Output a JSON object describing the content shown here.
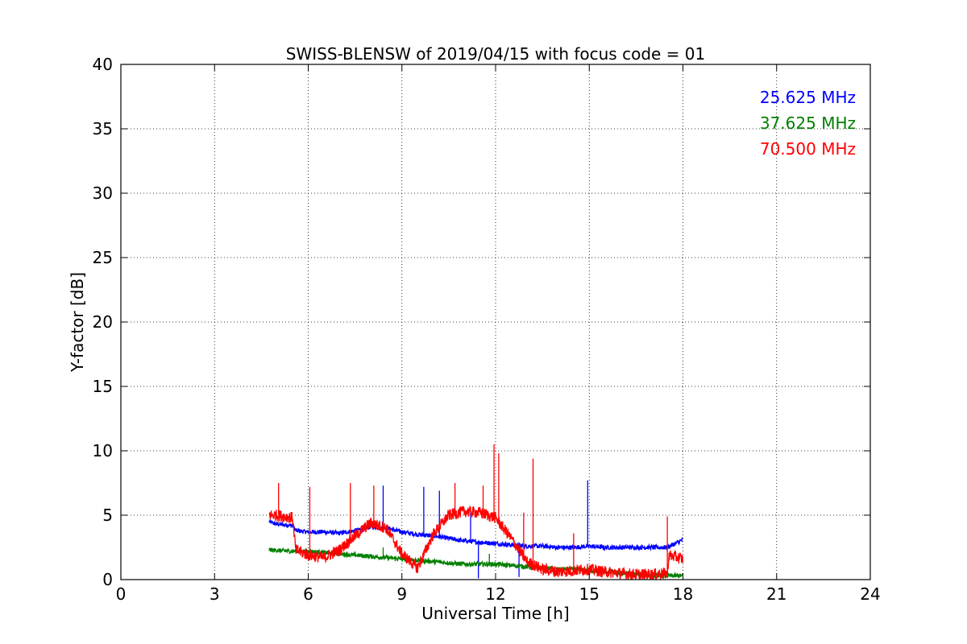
{
  "chart_data": {
    "type": "line",
    "title": "SWISS-BLENSW of 2019/04/15 with focus code = 01",
    "xlabel": "Universal Time [h]",
    "ylabel": "Y-factor [dB]",
    "xlim": [
      0,
      24
    ],
    "ylim": [
      0,
      40
    ],
    "xticks": [
      0,
      3,
      6,
      9,
      12,
      15,
      18,
      21,
      24
    ],
    "yticks": [
      0,
      5,
      10,
      15,
      20,
      25,
      30,
      35,
      40
    ],
    "xtick_labels": [
      "0",
      "3",
      "6",
      "9",
      "12",
      "15",
      "18",
      "21",
      "24"
    ],
    "ytick_labels": [
      "0",
      "5",
      "10",
      "15",
      "20",
      "25",
      "30",
      "35",
      "40"
    ],
    "grid": true,
    "legend_position": "top-right",
    "series": [
      {
        "name": "25.625 MHz",
        "color": "#0000ff",
        "x": [
          4.75,
          5.0,
          5.5,
          5.6,
          6.0,
          6.5,
          7.0,
          7.5,
          8.0,
          8.5,
          9.0,
          9.5,
          10.0,
          10.5,
          11.0,
          11.5,
          12.0,
          12.5,
          13.0,
          13.5,
          14.0,
          14.5,
          15.0,
          15.5,
          16.0,
          16.5,
          17.0,
          17.5,
          18.0
        ],
        "y": [
          4.5,
          4.3,
          4.2,
          3.8,
          3.7,
          3.7,
          3.6,
          3.8,
          4.1,
          4.0,
          3.7,
          3.5,
          3.4,
          3.2,
          3.0,
          2.9,
          2.8,
          2.7,
          2.6,
          2.6,
          2.5,
          2.5,
          2.6,
          2.5,
          2.5,
          2.5,
          2.5,
          2.5,
          3.1
        ],
        "spikes": [
          [
            8.4,
            7.3
          ],
          [
            9.7,
            7.2
          ],
          [
            10.2,
            6.9
          ],
          [
            11.2,
            5.3
          ],
          [
            11.45,
            0.1
          ],
          [
            12.75,
            0.2
          ],
          [
            14.95,
            7.7
          ]
        ]
      },
      {
        "name": "37.625 MHz",
        "color": "#008000",
        "x": [
          4.75,
          5.5,
          6.0,
          6.5,
          7.0,
          7.5,
          8.0,
          8.5,
          9.0,
          9.5,
          10.0,
          10.5,
          11.0,
          11.5,
          12.0,
          12.5,
          13.0,
          13.5,
          14.0,
          14.5,
          15.0,
          15.5,
          16.0,
          16.5,
          17.0,
          17.5,
          18.0
        ],
        "y": [
          2.3,
          2.2,
          2.2,
          2.1,
          2.0,
          1.9,
          1.8,
          1.7,
          1.6,
          1.5,
          1.4,
          1.3,
          1.2,
          1.2,
          1.2,
          1.1,
          1.0,
          0.9,
          0.8,
          0.8,
          0.7,
          0.6,
          0.5,
          0.4,
          0.3,
          0.3,
          0.3
        ],
        "spikes": [
          [
            8.4,
            2.5
          ],
          [
            11.8,
            2.0
          ]
        ]
      },
      {
        "name": "70.500 MHz",
        "color": "#ff0000",
        "x": [
          4.75,
          5.0,
          5.5,
          5.6,
          6.0,
          6.5,
          7.0,
          7.5,
          8.0,
          8.5,
          9.0,
          9.5,
          10.0,
          10.5,
          11.0,
          11.5,
          12.0,
          12.5,
          13.0,
          13.5,
          14.0,
          14.5,
          15.0,
          15.5,
          16.0,
          16.5,
          17.0,
          17.5,
          17.55,
          18.0
        ],
        "y": [
          5.0,
          5.0,
          4.8,
          2.3,
          1.9,
          1.7,
          2.3,
          3.4,
          4.4,
          4.0,
          2.0,
          0.9,
          3.5,
          5.0,
          5.3,
          5.2,
          4.8,
          3.2,
          1.4,
          0.8,
          0.6,
          0.7,
          0.8,
          0.6,
          0.5,
          0.4,
          0.4,
          0.5,
          1.9,
          1.6
        ],
        "spikes": [
          [
            5.05,
            7.5
          ],
          [
            6.05,
            7.2
          ],
          [
            7.35,
            7.5
          ],
          [
            8.1,
            7.3
          ],
          [
            10.7,
            7.5
          ],
          [
            11.6,
            7.3
          ],
          [
            11.95,
            10.5
          ],
          [
            12.1,
            9.8
          ],
          [
            12.9,
            5.2
          ],
          [
            13.2,
            9.4
          ],
          [
            14.5,
            3.6
          ],
          [
            17.5,
            4.9
          ]
        ]
      }
    ]
  }
}
